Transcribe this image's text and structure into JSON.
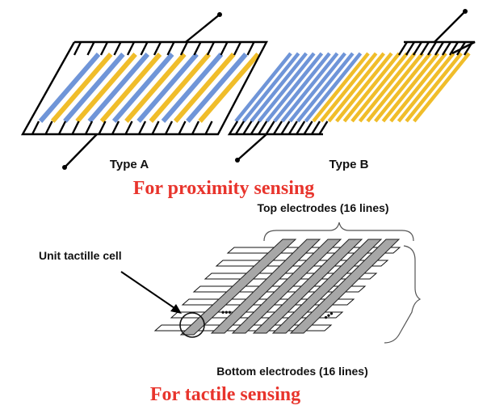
{
  "type_a": {
    "label": "Type A"
  },
  "type_b": {
    "label": "Type B"
  },
  "proximity_caption": "For proximity sensing",
  "top_electrodes_label": "Top electrodes (16 lines)",
  "unit_cell_label": "Unit tactille cell",
  "bottom_electrodes_label": "Bottom electrodes (16 lines)",
  "tactile_caption": "For tactile sensing",
  "ellipsis": "•••",
  "colors": {
    "blue_electrode": "#6f95d8",
    "yellow_electrode": "#f0bd2a",
    "outline": "#000000",
    "strip_fill": "#a7a7a7",
    "caption_red": "#e8342c"
  }
}
